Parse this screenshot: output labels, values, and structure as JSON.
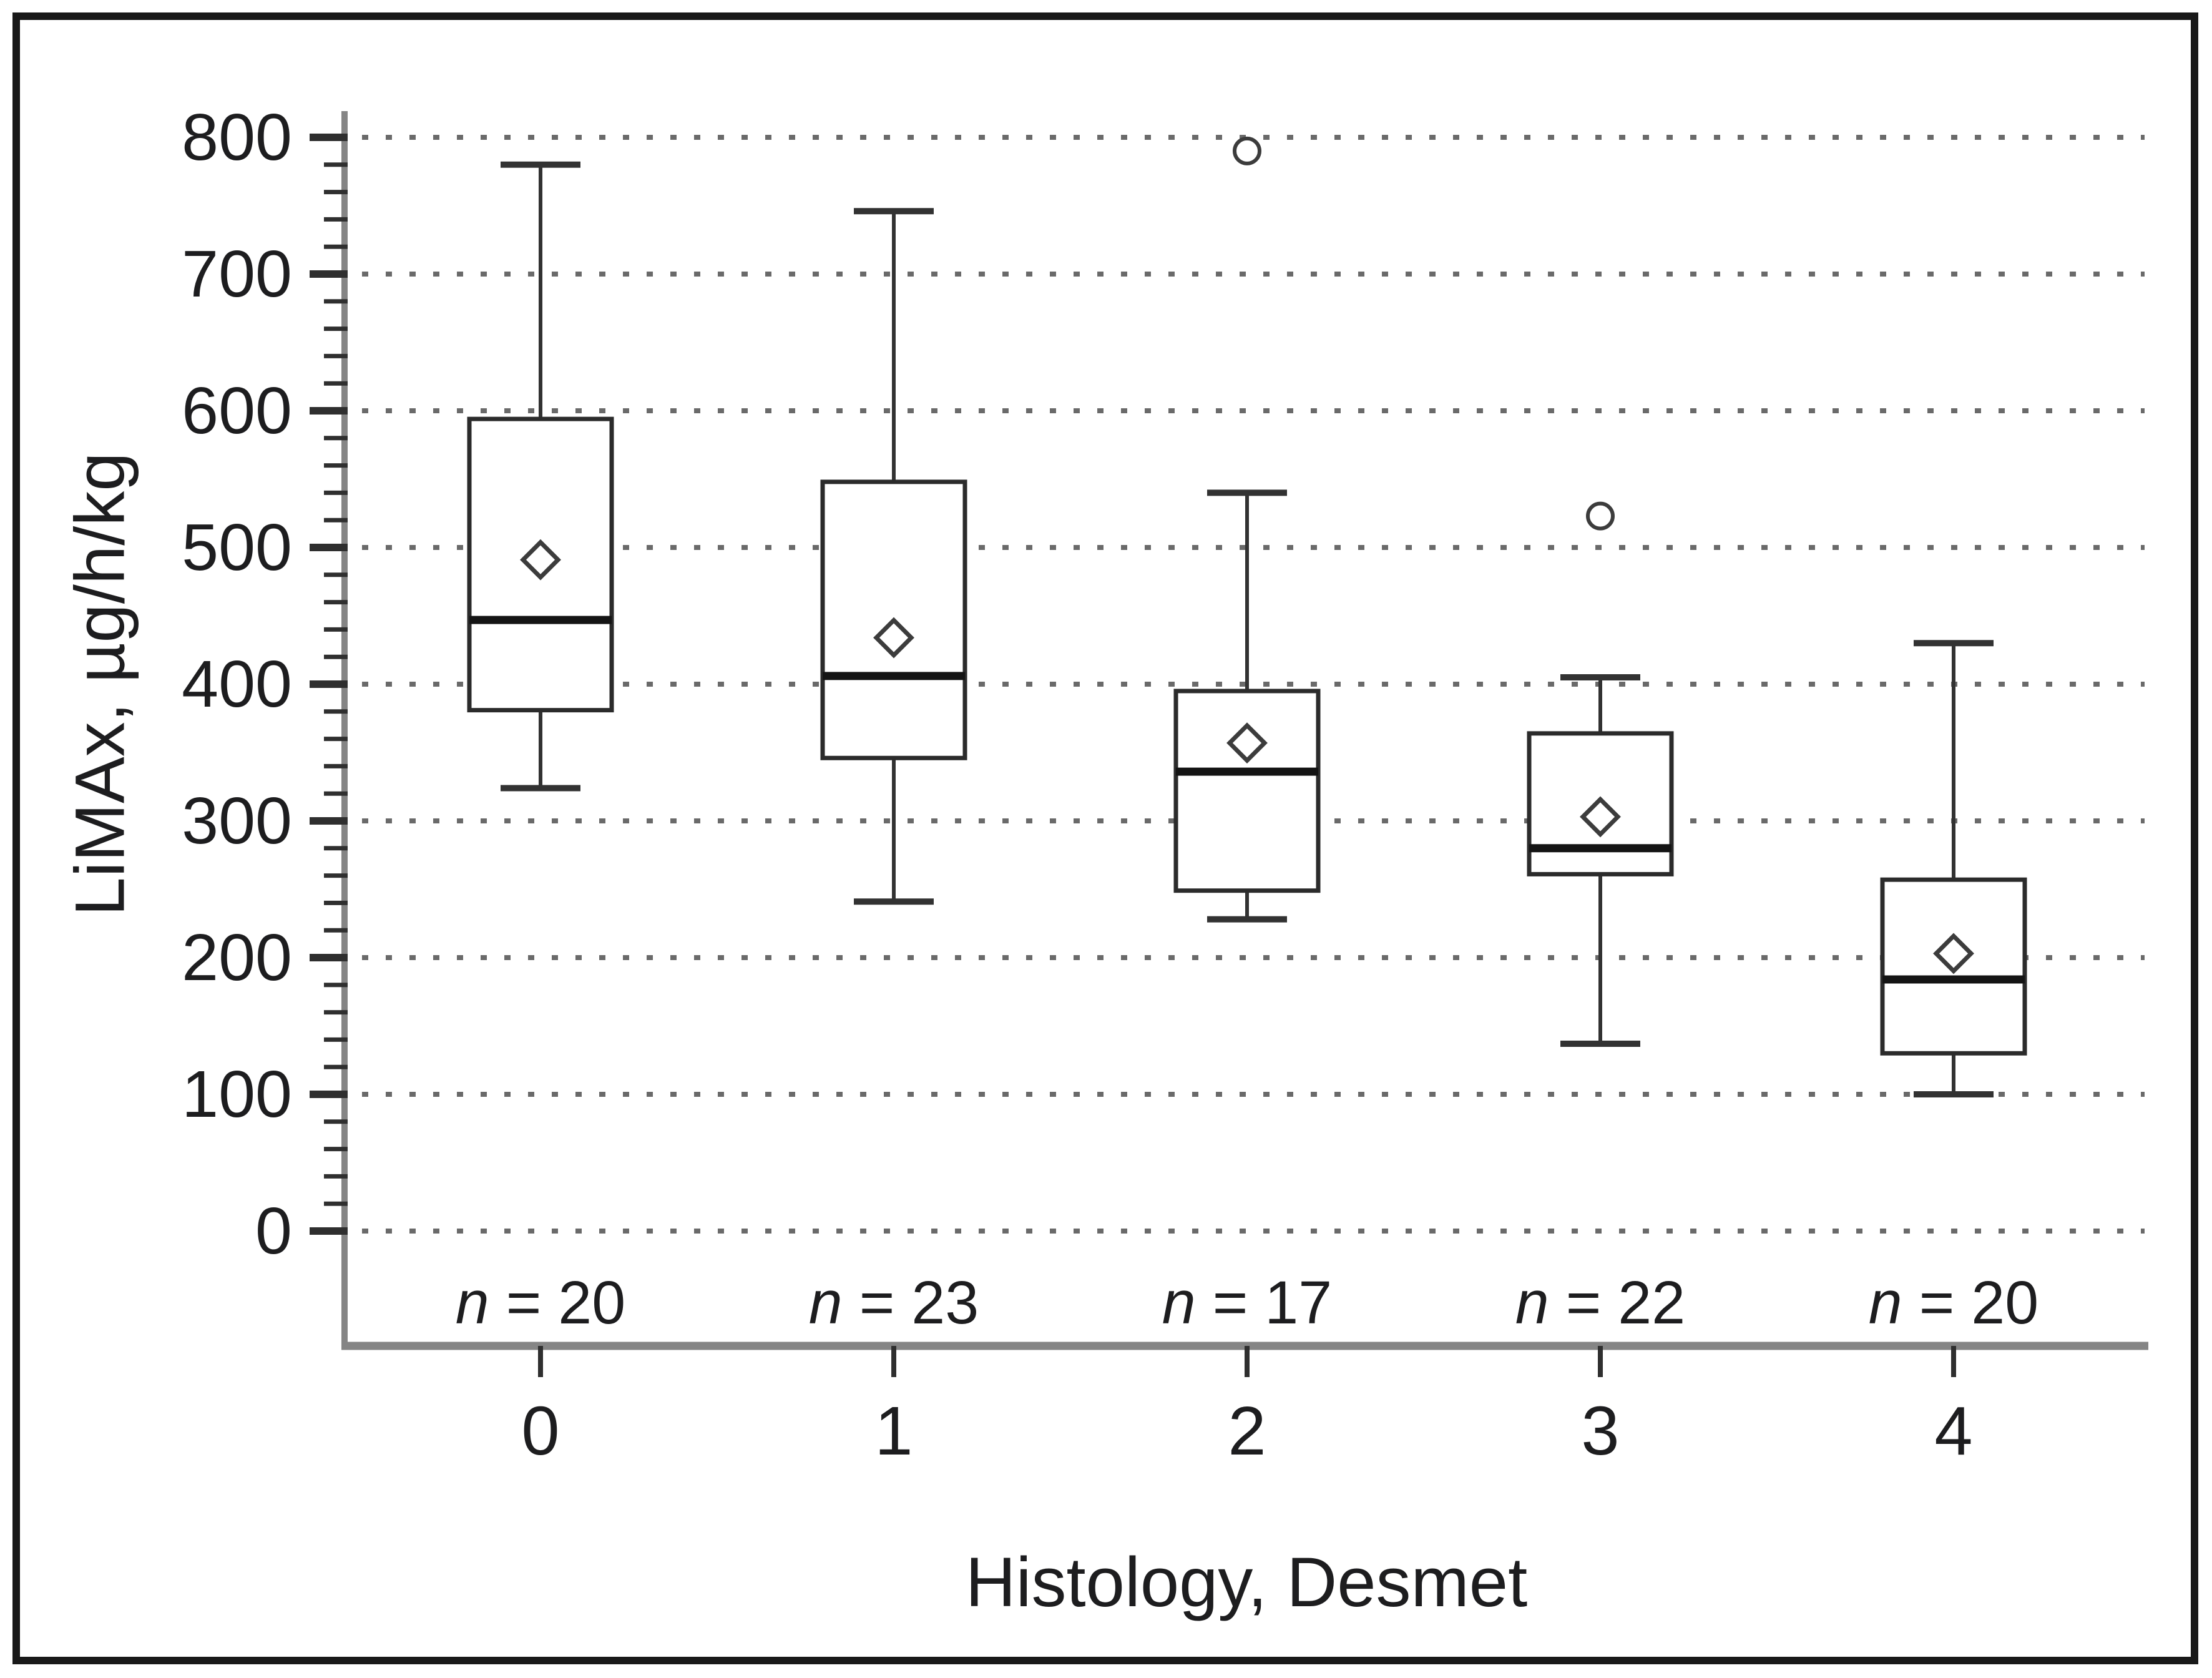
{
  "figure": {
    "x_axis_title": "Histology, Desmet",
    "y_axis_title": "LiMAx, µg/h/kg"
  },
  "colors": {
    "background": "#ffffff",
    "frame_border": "#191919",
    "axis_line": "#858585",
    "tick": "#2f2f2f",
    "grid_dot": "#6a6a6a",
    "box_stroke": "#2b2b2b",
    "median": "#141414",
    "whisker": "#323232",
    "marker": "#3c3c3c",
    "text": "#1d1d1f"
  },
  "chart_data": {
    "type": "box",
    "title": "",
    "xlabel": "Histology, Desmet",
    "ylabel": "LiMAx, µg/h/kg",
    "categories": [
      "0",
      "1",
      "2",
      "3",
      "4"
    ],
    "y_axis": {
      "min": 0,
      "max": 800,
      "major_step": 100,
      "minor_step": 20,
      "tick_labels": [
        "800",
        "700",
        "600",
        "500",
        "400",
        "300",
        "200",
        "100",
        "0"
      ]
    },
    "grid": "dotted horizontal line at every major step",
    "n_label": {
      "symbol": "n",
      "equals": " = "
    },
    "series": [
      {
        "category": "0",
        "n": "20",
        "whisker_low": 324,
        "q1": 381,
        "median": 447,
        "q3": 594,
        "whisker_high": 780,
        "mean": 491,
        "outliers": []
      },
      {
        "category": "1",
        "n": "23",
        "whisker_low": 241,
        "q1": 346,
        "median": 406,
        "q3": 548,
        "whisker_high": 746,
        "mean": 434,
        "outliers": []
      },
      {
        "category": "2",
        "n": "17",
        "whisker_low": 228,
        "q1": 249,
        "median": 336,
        "q3": 395,
        "whisker_high": 540,
        "mean": 357,
        "outliers": [
          790
        ]
      },
      {
        "category": "3",
        "n": "22",
        "whisker_low": 137,
        "q1": 261,
        "median": 280,
        "q3": 364,
        "whisker_high": 405,
        "mean": 303,
        "outliers": [
          523
        ]
      },
      {
        "category": "4",
        "n": "20",
        "whisker_low": 100,
        "q1": 130,
        "median": 184,
        "q3": 257,
        "whisker_high": 430,
        "mean": 203,
        "outliers": []
      }
    ],
    "marker_legend": {
      "diamond": "mean",
      "circle": "outlier"
    }
  }
}
